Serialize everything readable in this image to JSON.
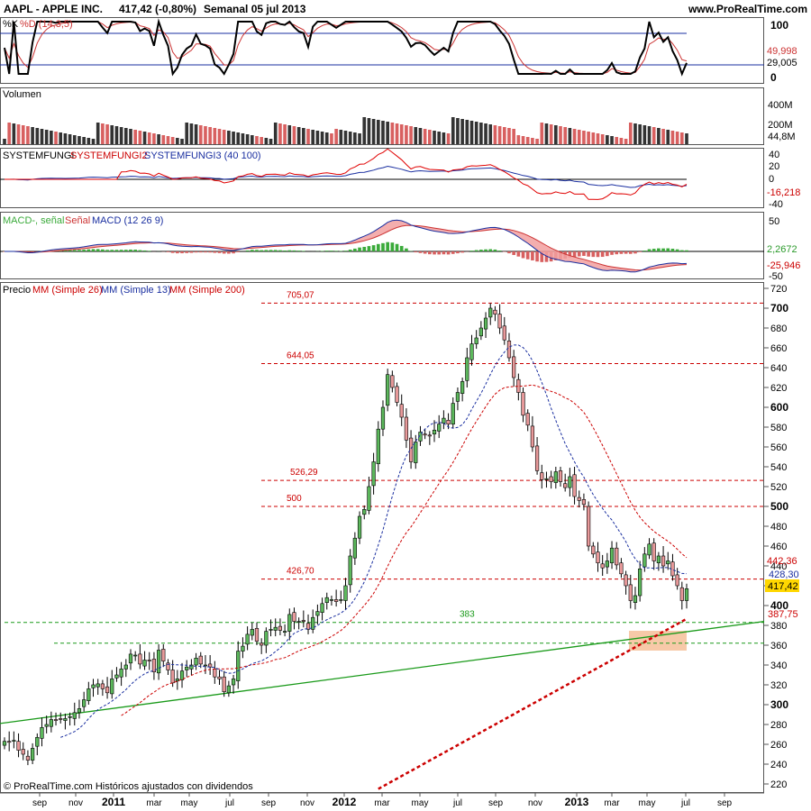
{
  "header": {
    "symbol_text": "AAPL - APPLE INC.",
    "quote_text": "417,42 (-0,80%)",
    "period_text": "Semanal  05 jul 2013",
    "site_text": "www.ProRealTime.com"
  },
  "footer": {
    "copyright_text": "© ProRealTime.com Históricos ajustados con dividendos"
  },
  "x_axis": {
    "months": [
      "sep",
      "nov",
      "2011",
      "mar",
      "may",
      "jul",
      "sep",
      "nov",
      "2012",
      "mar",
      "may",
      "jul",
      "sep",
      "nov",
      "2013",
      "mar",
      "may",
      "jul",
      "sep"
    ],
    "year_labels": [
      "2011",
      "2012",
      "2013"
    ]
  },
  "colors": {
    "up_candle": "#5cb85c",
    "down_candle": "#e8999a",
    "ma_red": "#cc0000",
    "ma_blue": "#1a2fa0",
    "ma200": "#cc0000",
    "trendline": "#1a9a1a",
    "grid": "#000000",
    "highlight_zone": "#f7c9a8",
    "last_price_bg": "#ffd700"
  },
  "panels": {
    "stoch": {
      "label_k": "%K",
      "label_d": "%D (14,3,5)",
      "ticks": [
        "100",
        "0"
      ],
      "value_d": "49,998",
      "value_k": "29,005"
    },
    "volume": {
      "label": "Volumen",
      "ticks": [
        "400M",
        "200M"
      ],
      "value": "44,8M"
    },
    "system": {
      "label1": "SYSTEMFUNGI",
      "label2": "SYSTEMFUNGI2",
      "label3": "SYSTEMFUNGI3 (40 100)",
      "ticks": [
        "40",
        "20",
        "0",
        "-20",
        "-40"
      ],
      "value": "-16,218"
    },
    "macd": {
      "label1": "MACD-, señal",
      "label2": "Señal",
      "label3": "MACD (12 26 9)",
      "ticks": [
        "50",
        "-50"
      ],
      "value_hist": "2,2672",
      "value_macd": "-25,946"
    },
    "price": {
      "label_precio": "Precio",
      "label_ma26": "MM (Simple 26)",
      "label_ma13": "MM (Simple 13)",
      "label_ma200": "MM (Simple 200)",
      "ticks": [
        "720",
        "700",
        "680",
        "660",
        "640",
        "620",
        "600",
        "580",
        "560",
        "540",
        "520",
        "500",
        "480",
        "460",
        "440",
        "420",
        "400",
        "380",
        "360",
        "340",
        "320",
        "300",
        "280",
        "260",
        "240",
        "220"
      ],
      "levels": [
        "705,07",
        "644,05",
        "526,29",
        "500",
        "426,70",
        "383"
      ],
      "value_ma26": "442,36",
      "value_ma13": "428,30",
      "value_last": "417,42",
      "value_ma200": "387,75"
    }
  },
  "chart_data": {
    "type": "candlestick",
    "title": "AAPL - APPLE INC.",
    "timeframe": "weekly",
    "last_close": 417.42,
    "change_pct": -0.8,
    "date": "05 jul 2013",
    "ylim": [
      220,
      720
    ],
    "horizontal_levels": [
      705.07,
      644.05,
      526.29,
      500,
      426.7,
      383,
      362
    ],
    "moving_averages": {
      "ma26": 442.36,
      "ma13": 428.3,
      "ma200": 387.75
    },
    "trendline": {
      "start": [
        2010.67,
        281
      ],
      "end": [
        2013.75,
        384
      ]
    },
    "weekly_close": [
      263,
      262,
      264,
      254,
      250,
      244,
      256,
      267,
      277,
      280,
      285,
      284,
      285,
      286,
      288,
      292,
      296,
      305,
      316,
      320,
      321,
      316,
      312,
      326,
      330,
      336,
      340,
      351,
      350,
      341,
      345,
      344,
      333,
      355,
      344,
      335,
      322,
      326,
      334,
      338,
      340,
      347,
      341,
      340,
      338,
      328,
      326,
      313,
      319,
      326,
      354,
      359,
      371,
      376,
      364,
      360,
      374,
      376,
      378,
      375,
      374,
      391,
      384,
      384,
      384,
      376,
      388,
      394,
      402,
      408,
      406,
      404,
      406,
      420,
      450,
      468,
      490,
      497,
      520,
      545,
      578,
      600,
      633,
      620,
      605,
      590,
      567,
      545,
      565,
      575,
      572,
      571,
      577,
      583,
      589,
      583,
      604,
      615,
      626,
      650,
      664,
      670,
      680,
      690,
      700,
      694,
      680,
      668,
      650,
      630,
      615,
      592,
      582,
      560,
      536,
      527,
      528,
      525,
      535,
      525,
      519,
      530,
      510,
      506,
      502,
      460,
      452,
      443,
      438,
      445,
      458,
      441,
      432,
      420,
      405,
      410,
      437,
      452,
      462,
      445,
      450,
      440,
      445,
      430,
      420,
      405,
      417
    ]
  }
}
